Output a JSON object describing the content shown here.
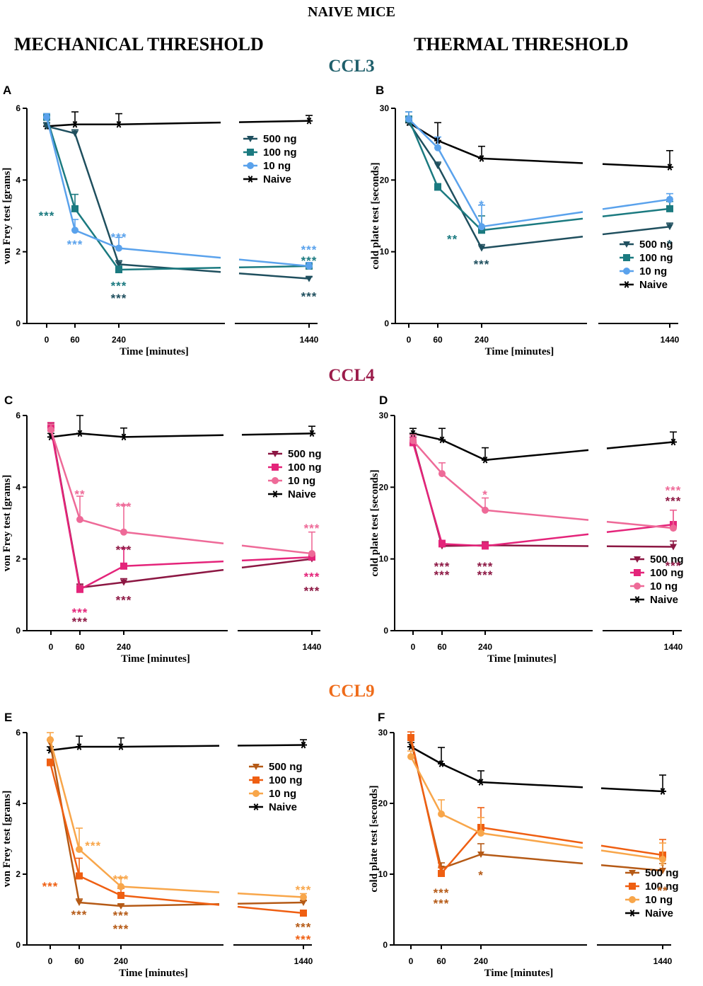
{
  "figure": {
    "title": "NAIVE MICE",
    "column_titles": [
      "MECHANICAL THRESHOLD",
      "THERMAL THRESHOLD"
    ],
    "chemokines": [
      {
        "name": "CCL3",
        "color": "#1f5f6b"
      },
      {
        "name": "CCL4",
        "color": "#9b1b4a"
      },
      {
        "name": "CCL9",
        "color": "#ef6c1a"
      }
    ]
  },
  "chart_data": [
    {
      "type": "line",
      "panel": "A",
      "chemokine": "CCL3",
      "xlabel": "Time [minutes]",
      "ylabel": "von Frey test [grams]",
      "x": [
        0,
        60,
        240,
        1440
      ],
      "ylim": [
        0,
        6
      ],
      "yticks": [
        0,
        2,
        4,
        6
      ],
      "series": [
        {
          "name": "500 ng",
          "marker": "triangle-down",
          "color": "#1f4f5e",
          "values": [
            5.5,
            5.3,
            1.65,
            1.25
          ],
          "err": [
            0.1,
            0.1,
            0.1,
            0.05
          ]
        },
        {
          "name": "100 ng",
          "marker": "square",
          "color": "#1b7a80",
          "values": [
            5.75,
            3.2,
            1.5,
            1.6
          ],
          "err": [
            0.1,
            0.4,
            0.1,
            0.1
          ]
        },
        {
          "name": "10 ng",
          "marker": "circle",
          "color": "#5aa2ec",
          "values": [
            5.75,
            2.6,
            2.1,
            1.6
          ],
          "err": [
            0.1,
            0.3,
            0.3,
            0.1
          ]
        },
        {
          "name": "Naive",
          "marker": "star",
          "color": "#000000",
          "values": [
            5.5,
            5.55,
            5.55,
            5.65
          ],
          "err": [
            0.1,
            0.35,
            0.3,
            0.15
          ]
        }
      ],
      "annotations": [
        {
          "text": "***",
          "x": 0,
          "y": 3.05,
          "color": "#1b7a80"
        },
        {
          "text": "***",
          "x": 60,
          "y": 2.25,
          "color": "#5aa2ec"
        },
        {
          "text": "***",
          "x": 240,
          "y": 2.45,
          "color": "#5aa2ec"
        },
        {
          "text": "***",
          "x": 240,
          "y": 1.1,
          "color": "#1b7a80"
        },
        {
          "text": "***",
          "x": 240,
          "y": 0.75,
          "color": "#1f4f5e"
        },
        {
          "text": "***",
          "x": 1440,
          "y": 2.1,
          "color": "#5aa2ec"
        },
        {
          "text": "***",
          "x": 1440,
          "y": 1.8,
          "color": "#1b7a80"
        },
        {
          "text": "***",
          "x": 1440,
          "y": 0.8,
          "color": "#1f4f5e"
        }
      ]
    },
    {
      "type": "line",
      "panel": "B",
      "chemokine": "CCL3",
      "xlabel": "Time [minutes]",
      "ylabel": "cold plate test [seconds]",
      "x": [
        0,
        60,
        240,
        1440
      ],
      "ylim": [
        0,
        30
      ],
      "yticks": [
        0,
        10,
        20,
        30
      ],
      "series": [
        {
          "name": "500 ng",
          "marker": "triangle-down",
          "color": "#1f4f5e",
          "values": [
            28,
            22,
            10.5,
            13.5
          ],
          "err": [
            0.5,
            0.5,
            0.5,
            0.5
          ]
        },
        {
          "name": "100 ng",
          "marker": "square",
          "color": "#1b7a80",
          "values": [
            28.5,
            19,
            13,
            16
          ],
          "err": [
            1,
            0.5,
            2,
            1
          ]
        },
        {
          "name": "10 ng",
          "marker": "circle",
          "color": "#5aa2ec",
          "values": [
            28.5,
            24.5,
            13.5,
            17.3
          ],
          "err": [
            1,
            1.5,
            3,
            0.8
          ]
        },
        {
          "name": "Naive",
          "marker": "star",
          "color": "#000000",
          "values": [
            28,
            25.5,
            23,
            21.8
          ],
          "err": [
            0.5,
            2.5,
            1.7,
            2.3
          ]
        }
      ],
      "annotations": [
        {
          "text": "*",
          "x": 240,
          "y": 16.8,
          "color": "#5aa2ec"
        },
        {
          "text": "**",
          "x": 120,
          "y": 12,
          "color": "#1b7a80"
        },
        {
          "text": "***",
          "x": 240,
          "y": 8.5,
          "color": "#1f4f5e"
        },
        {
          "text": "*",
          "x": 1440,
          "y": 11.3,
          "color": "#1f4f5e"
        }
      ]
    },
    {
      "type": "line",
      "panel": "C",
      "chemokine": "CCL4",
      "xlabel": "Time [minutes]",
      "ylabel": "von Frey test [grams]",
      "x": [
        0,
        60,
        240,
        1440
      ],
      "ylim": [
        0,
        6
      ],
      "yticks": [
        0,
        2,
        4,
        6
      ],
      "series": [
        {
          "name": "500 ng",
          "marker": "triangle-down",
          "color": "#8c1743",
          "values": [
            5.7,
            1.2,
            1.35,
            2.0
          ],
          "err": [
            0.1,
            0.1,
            0.1,
            0.05
          ]
        },
        {
          "name": "100 ng",
          "marker": "square",
          "color": "#e4247a",
          "values": [
            5.65,
            1.15,
            1.8,
            2.05
          ],
          "err": [
            0.15,
            0.1,
            0.5,
            0.1
          ]
        },
        {
          "name": "10 ng",
          "marker": "circle",
          "color": "#ee6a98",
          "values": [
            5.6,
            3.1,
            2.75,
            2.15
          ],
          "err": [
            0.15,
            0.65,
            0.75,
            0.6
          ]
        },
        {
          "name": "Naive",
          "marker": "star",
          "color": "#000000",
          "values": [
            5.4,
            5.5,
            5.4,
            5.5
          ],
          "err": [
            0.1,
            0.5,
            0.25,
            0.2
          ]
        }
      ],
      "annotations": [
        {
          "text": "**",
          "x": 60,
          "y": 3.85,
          "color": "#ee6a98"
        },
        {
          "text": "***",
          "x": 240,
          "y": 3.5,
          "color": "#ee6a98"
        },
        {
          "text": "***",
          "x": 240,
          "y": 2.3,
          "color": "#8c1743"
        },
        {
          "text": "***",
          "x": 240,
          "y": 0.9,
          "color": "#8c1743"
        },
        {
          "text": "***",
          "x": 60,
          "y": 0.55,
          "color": "#e4247a"
        },
        {
          "text": "***",
          "x": 60,
          "y": 0.3,
          "color": "#8c1743"
        },
        {
          "text": "***",
          "x": 1440,
          "y": 2.9,
          "color": "#ee6a98"
        },
        {
          "text": "***",
          "x": 1440,
          "y": 1.55,
          "color": "#e4247a"
        },
        {
          "text": "***",
          "x": 1440,
          "y": 1.15,
          "color": "#8c1743"
        }
      ]
    },
    {
      "type": "line",
      "panel": "D",
      "chemokine": "CCL4",
      "xlabel": "Time [minutes]",
      "ylabel": "cold plate test [seconds]",
      "x": [
        0,
        60,
        240,
        1440
      ],
      "ylim": [
        0,
        30
      ],
      "yticks": [
        0,
        10,
        20,
        30
      ],
      "series": [
        {
          "name": "500 ng",
          "marker": "triangle-down",
          "color": "#8c1743",
          "values": [
            26.5,
            11.8,
            11.9,
            11.7
          ],
          "err": [
            0.8,
            0.5,
            0.5,
            0.8
          ]
        },
        {
          "name": "100 ng",
          "marker": "square",
          "color": "#e4247a",
          "values": [
            26.2,
            12.1,
            11.8,
            14.8
          ],
          "err": [
            0.8,
            0.5,
            0.5,
            2
          ]
        },
        {
          "name": "10 ng",
          "marker": "circle",
          "color": "#ee6a98",
          "values": [
            26.5,
            21.9,
            16.8,
            14.3
          ],
          "err": [
            0.8,
            1.5,
            1.7,
            2.5
          ]
        },
        {
          "name": "Naive",
          "marker": "star",
          "color": "#000000",
          "values": [
            27.5,
            26.6,
            23.8,
            26.3
          ],
          "err": [
            0.7,
            1.6,
            1.7,
            1.4
          ]
        }
      ],
      "annotations": [
        {
          "text": "*",
          "x": 240,
          "y": 19.2,
          "color": "#ee6a98"
        },
        {
          "text": "***",
          "x": 60,
          "y": 9.2,
          "color": "#8c1743"
        },
        {
          "text": "***",
          "x": 60,
          "y": 8.0,
          "color": "#8c1743"
        },
        {
          "text": "***",
          "x": 240,
          "y": 9.2,
          "color": "#8c1743"
        },
        {
          "text": "***",
          "x": 240,
          "y": 8.0,
          "color": "#8c1743"
        },
        {
          "text": "***",
          "x": 1440,
          "y": 19.8,
          "color": "#ee6a98"
        },
        {
          "text": "***",
          "x": 1440,
          "y": 18.3,
          "color": "#8c1743"
        },
        {
          "text": "***",
          "x": 1440,
          "y": 9.3,
          "color": "#8c1743"
        }
      ]
    },
    {
      "type": "line",
      "panel": "E",
      "chemokine": "CCL9",
      "xlabel": "Time [minutes]",
      "ylabel": "von Frey test [grams]",
      "x": [
        0,
        60,
        240,
        1440
      ],
      "ylim": [
        0,
        6
      ],
      "yticks": [
        0,
        2,
        4,
        6
      ],
      "series": [
        {
          "name": "500 ng",
          "marker": "triangle-down",
          "color": "#b55a16",
          "values": [
            5.7,
            1.2,
            1.1,
            1.2
          ],
          "err": [
            0.1,
            0.1,
            0.05,
            0.05
          ]
        },
        {
          "name": "100 ng",
          "marker": "square",
          "color": "#ef5f12",
          "values": [
            5.15,
            1.95,
            1.4,
            0.9
          ],
          "err": [
            0.1,
            0.5,
            0.2,
            0.05
          ]
        },
        {
          "name": "10 ng",
          "marker": "circle",
          "color": "#f8a64a",
          "values": [
            5.8,
            2.7,
            1.65,
            1.35
          ],
          "err": [
            0.2,
            0.6,
            0.25,
            0.1
          ]
        },
        {
          "name": "Naive",
          "marker": "star",
          "color": "#000000",
          "values": [
            5.5,
            5.6,
            5.6,
            5.65
          ],
          "err": [
            0.1,
            0.3,
            0.25,
            0.15
          ]
        }
      ],
      "annotations": [
        {
          "text": "***",
          "x": 0,
          "y": 1.7,
          "color": "#ef5f12"
        },
        {
          "text": "***",
          "x": 120,
          "y": 2.85,
          "color": "#f8a64a"
        },
        {
          "text": "***",
          "x": 240,
          "y": 1.9,
          "color": "#f8a64a"
        },
        {
          "text": "***",
          "x": 60,
          "y": 0.9,
          "color": "#b55a16"
        },
        {
          "text": "***",
          "x": 240,
          "y": 0.88,
          "color": "#b55a16"
        },
        {
          "text": "***",
          "x": 240,
          "y": 0.5,
          "color": "#b55a16"
        },
        {
          "text": "***",
          "x": 1440,
          "y": 1.6,
          "color": "#f8a64a"
        },
        {
          "text": "***",
          "x": 1440,
          "y": 0.55,
          "color": "#b55a16"
        },
        {
          "text": "***",
          "x": 1440,
          "y": 0.2,
          "color": "#ef5f12"
        }
      ]
    },
    {
      "type": "line",
      "panel": "F",
      "chemokine": "CCL9",
      "xlabel": "Time [minutes]",
      "ylabel": "cold plate test [seconds]",
      "x": [
        0,
        60,
        240,
        1440
      ],
      "ylim": [
        0,
        30
      ],
      "yticks": [
        0,
        10,
        20,
        30
      ],
      "series": [
        {
          "name": "500 ng",
          "marker": "triangle-down",
          "color": "#b55a16",
          "values": [
            28.8,
            10.8,
            12.8,
            10.5
          ],
          "err": [
            0.8,
            0.8,
            1.5,
            1
          ]
        },
        {
          "name": "100 ng",
          "marker": "square",
          "color": "#ef5f12",
          "values": [
            29.3,
            10.1,
            16.6,
            12.7
          ],
          "err": [
            0.8,
            0.8,
            2.8,
            2.2
          ]
        },
        {
          "name": "10 ng",
          "marker": "circle",
          "color": "#f8a64a",
          "values": [
            26.6,
            18.5,
            15.8,
            12.1
          ],
          "err": [
            0.8,
            2,
            2.2,
            2.3
          ]
        },
        {
          "name": "Naive",
          "marker": "star",
          "color": "#000000",
          "values": [
            28,
            25.6,
            23,
            21.7
          ],
          "err": [
            0.6,
            2.3,
            1.6,
            2.3
          ]
        }
      ],
      "annotations": [
        {
          "text": "***",
          "x": 60,
          "y": 7.6,
          "color": "#b55a16"
        },
        {
          "text": "***",
          "x": 60,
          "y": 6.1,
          "color": "#b55a16"
        },
        {
          "text": "*",
          "x": 240,
          "y": 10.1,
          "color": "#b55a16"
        },
        {
          "text": "*",
          "x": 1440,
          "y": 11.4,
          "color": "#f8a64a"
        },
        {
          "text": "**",
          "x": 1440,
          "y": 7.9,
          "color": "#b55a16"
        }
      ]
    }
  ]
}
